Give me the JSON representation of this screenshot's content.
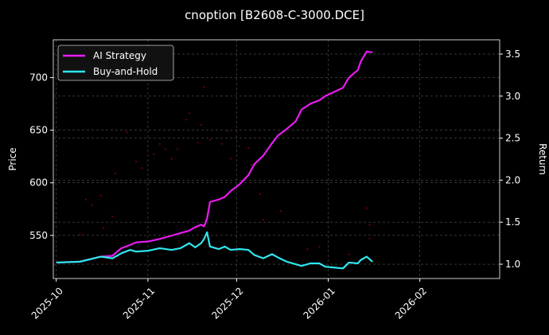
{
  "chart_data": {
    "type": "line",
    "title": "cnoption [B2608-C-3000.DCE]",
    "ylabel": "Price",
    "y2label": "Return",
    "xlim": [
      "2025-09-30",
      "2026-02-28"
    ],
    "xticks": [
      {
        "value": "2025-10-01",
        "label": "2025-10"
      },
      {
        "value": "2025-11-01",
        "label": "2025-11"
      },
      {
        "value": "2025-12-01",
        "label": "2025-12"
      },
      {
        "value": "2026-01-01",
        "label": "2026-01"
      },
      {
        "value": "2026-02-01",
        "label": "2026-02"
      }
    ],
    "ylim": [
      509,
      736
    ],
    "yticks": [
      550,
      600,
      650,
      700
    ],
    "y2lim": [
      0.83,
      3.67
    ],
    "y2ticks": [
      {
        "value": 1,
        "label": "1.0"
      },
      {
        "value": 1.5,
        "label": "1.5"
      },
      {
        "value": 2,
        "label": "2.0"
      },
      {
        "value": 2.5,
        "label": "2.5"
      },
      {
        "value": 3,
        "label": "3.0"
      },
      {
        "value": 3.5,
        "label": "3.5"
      }
    ],
    "grid": true,
    "legend": "upper left",
    "x": [
      "2025-10-01",
      "2025-10-09",
      "2025-10-16",
      "2025-10-20",
      "2025-10-23",
      "2025-10-26",
      "2025-10-28",
      "2025-11-01",
      "2025-11-05",
      "2025-11-09",
      "2025-11-12",
      "2025-11-15",
      "2025-11-17",
      "2025-11-19",
      "2025-11-20",
      "2025-11-21",
      "2025-11-22",
      "2025-11-25",
      "2025-11-27",
      "2025-11-29",
      "2025-12-02",
      "2025-12-05",
      "2025-12-07",
      "2025-12-10",
      "2025-12-13",
      "2025-12-15",
      "2025-12-18",
      "2025-12-21",
      "2025-12-23",
      "2025-12-26",
      "2025-12-29",
      "2025-12-31",
      "2026-01-03",
      "2026-01-06",
      "2026-01-08",
      "2026-01-11",
      "2026-01-12",
      "2026-01-14",
      "2026-01-16"
    ],
    "series": [
      {
        "name": "AI Strategy",
        "color": "#e81cf0",
        "axis": "y2",
        "values": [
          1.02,
          1.03,
          1.09,
          1.1,
          1.19,
          1.23,
          1.26,
          1.27,
          1.3,
          1.34,
          1.37,
          1.4,
          1.44,
          1.47,
          1.45,
          1.54,
          1.74,
          1.77,
          1.8,
          1.87,
          1.95,
          2.06,
          2.19,
          2.29,
          2.44,
          2.53,
          2.61,
          2.7,
          2.84,
          2.91,
          2.95,
          3.0,
          3.05,
          3.1,
          3.22,
          3.31,
          3.41,
          3.53,
          3.52
        ]
      },
      {
        "name": "Buy-and-Hold",
        "color": "#2ee6ee",
        "axis": "y2",
        "values": [
          1.02,
          1.03,
          1.09,
          1.07,
          1.13,
          1.17,
          1.15,
          1.16,
          1.19,
          1.17,
          1.19,
          1.25,
          1.2,
          1.25,
          1.3,
          1.38,
          1.21,
          1.18,
          1.21,
          1.17,
          1.18,
          1.17,
          1.11,
          1.07,
          1.12,
          1.08,
          1.03,
          1.0,
          0.98,
          1.01,
          1.01,
          0.97,
          0.96,
          0.95,
          1.02,
          1.01,
          1.05,
          1.09,
          1.03
        ]
      }
    ],
    "scatter": {
      "color": "#8b0000",
      "x": [
        "2025-10-09",
        "2025-10-11",
        "2025-10-13",
        "2025-10-16",
        "2025-10-17",
        "2025-10-20",
        "2025-10-21",
        "2025-10-25",
        "2025-10-28",
        "2025-10-30",
        "2025-11-03",
        "2025-11-05",
        "2025-11-07",
        "2025-11-09",
        "2025-11-11",
        "2025-11-14",
        "2025-11-15",
        "2025-11-18",
        "2025-11-19",
        "2025-11-20",
        "2025-11-22",
        "2025-11-26",
        "2025-11-28",
        "2025-11-29",
        "2025-12-02",
        "2025-12-05",
        "2025-12-06",
        "2025-12-09",
        "2025-12-10",
        "2025-12-16",
        "2025-12-25",
        "2025-12-29",
        "2026-01-08",
        "2026-01-14",
        "2026-01-15",
        "2026-01-15"
      ],
      "values": [
        551,
        584,
        579,
        588,
        557,
        568,
        609,
        648,
        620,
        614,
        627,
        637,
        632,
        623,
        632,
        660,
        666,
        638,
        655,
        691,
        641,
        637,
        649,
        623,
        635,
        633,
        617,
        589,
        565,
        573,
        537,
        539,
        532,
        576,
        560,
        547
      ]
    }
  }
}
